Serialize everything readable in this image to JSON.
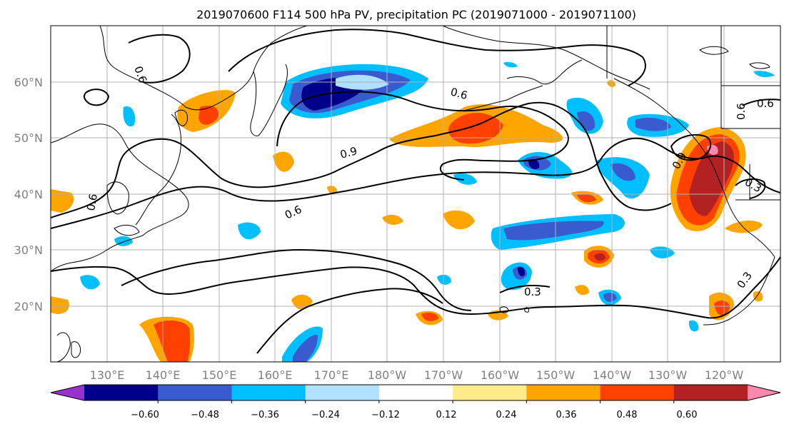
{
  "title": "2019070600 F114 500 hPa PV, precipitation PC (2019071000 - 2019071100)",
  "lon_labels": [
    "130°E",
    "140°E",
    "150°E",
    "160°E",
    "170°E",
    "180°W",
    "170°W",
    "160°W",
    "150°W",
    "140°W",
    "130°W",
    "120°W"
  ],
  "lat_labels": [
    "60°N",
    "50°N",
    "40°N",
    "30°N",
    "20°N"
  ],
  "colorbar": {
    "colors": [
      "#9932CC",
      "#00008B",
      "#3A5BD0",
      "#00BFFF",
      "#B0E0FF",
      "#FFFFFF",
      "#FFEB8A",
      "#FFA500",
      "#FF4000",
      "#B22222",
      "#FF88B0"
    ],
    "ticks": [
      "−0.60",
      "−0.48",
      "−0.36",
      "−0.24",
      "−0.12",
      "0.12",
      "0.24",
      "0.36",
      "0.48",
      "0.60"
    ]
  },
  "contour_labels": [
    "0.6",
    "0.6",
    "0.9",
    "0.6",
    "0.6",
    "0.9",
    "0.3",
    "0.3",
    "0.3",
    "0.6",
    "0.6"
  ],
  "colors": {
    "land_outline": "#000000",
    "grid": "#b0b0b0"
  }
}
